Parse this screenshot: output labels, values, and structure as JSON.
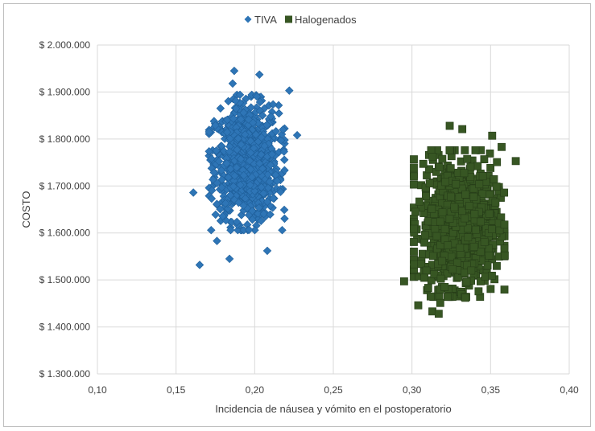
{
  "chart_data": {
    "type": "scatter",
    "title": "",
    "xlabel": "Incidencia de náusea y vómito en el postoperatorio",
    "ylabel": "COSTO",
    "xlim": [
      0.1,
      0.4
    ],
    "ylim": [
      1300000,
      2000000
    ],
    "x_ticks": [
      0.1,
      0.15,
      0.2,
      0.25,
      0.3,
      0.35,
      0.4
    ],
    "x_tick_labels": [
      "0,10",
      "0,15",
      "0,20",
      "0,25",
      "0,30",
      "0,35",
      "0,40"
    ],
    "y_ticks": [
      1300000,
      1400000,
      1500000,
      1600000,
      1700000,
      1800000,
      1900000,
      2000000
    ],
    "y_tick_labels": [
      "$ 1.300.000",
      "$ 1.400.000",
      "$ 1.500.000",
      "$ 1.600.000",
      "$ 1.700.000",
      "$ 1.800.000",
      "$ 1.900.000",
      "$ 2.000.000"
    ],
    "grid": "vertical and horizontal",
    "legend_position": "top-center",
    "series": [
      {
        "name": "TIVA",
        "marker": "diamond",
        "color": "#2e75b6",
        "center": [
          0.195,
          1750000
        ],
        "spread": [
          0.01,
          60000
        ],
        "point_count": 1000,
        "outliers": [
          [
            0.161,
            1686000
          ],
          [
            0.165,
            1532000
          ],
          [
            0.184,
            1545000
          ],
          [
            0.208,
            1562000
          ],
          [
            0.227,
            1808000
          ],
          [
            0.187,
            1945000
          ],
          [
            0.203,
            1937000
          ],
          [
            0.186,
            1918000
          ],
          [
            0.222,
            1903000
          ],
          [
            0.175,
            1829000
          ],
          [
            0.218,
            1820000
          ],
          [
            0.176,
            1583000
          ]
        ]
      },
      {
        "name": "Halogenados",
        "marker": "square",
        "color": "#375623",
        "center": [
          0.33,
          1620000
        ],
        "spread": [
          0.012,
          65000
        ],
        "point_count": 1000,
        "outliers": [
          [
            0.324,
            1828000
          ],
          [
            0.332,
            1821000
          ],
          [
            0.351,
            1807000
          ],
          [
            0.295,
            1497000
          ],
          [
            0.304,
            1446000
          ],
          [
            0.313,
            1433000
          ],
          [
            0.317,
            1428000
          ],
          [
            0.318,
            1451000
          ],
          [
            0.366,
            1753000
          ],
          [
            0.357,
            1783000
          ],
          [
            0.359,
            1552000
          ],
          [
            0.334,
            1462000
          ]
        ]
      }
    ]
  }
}
